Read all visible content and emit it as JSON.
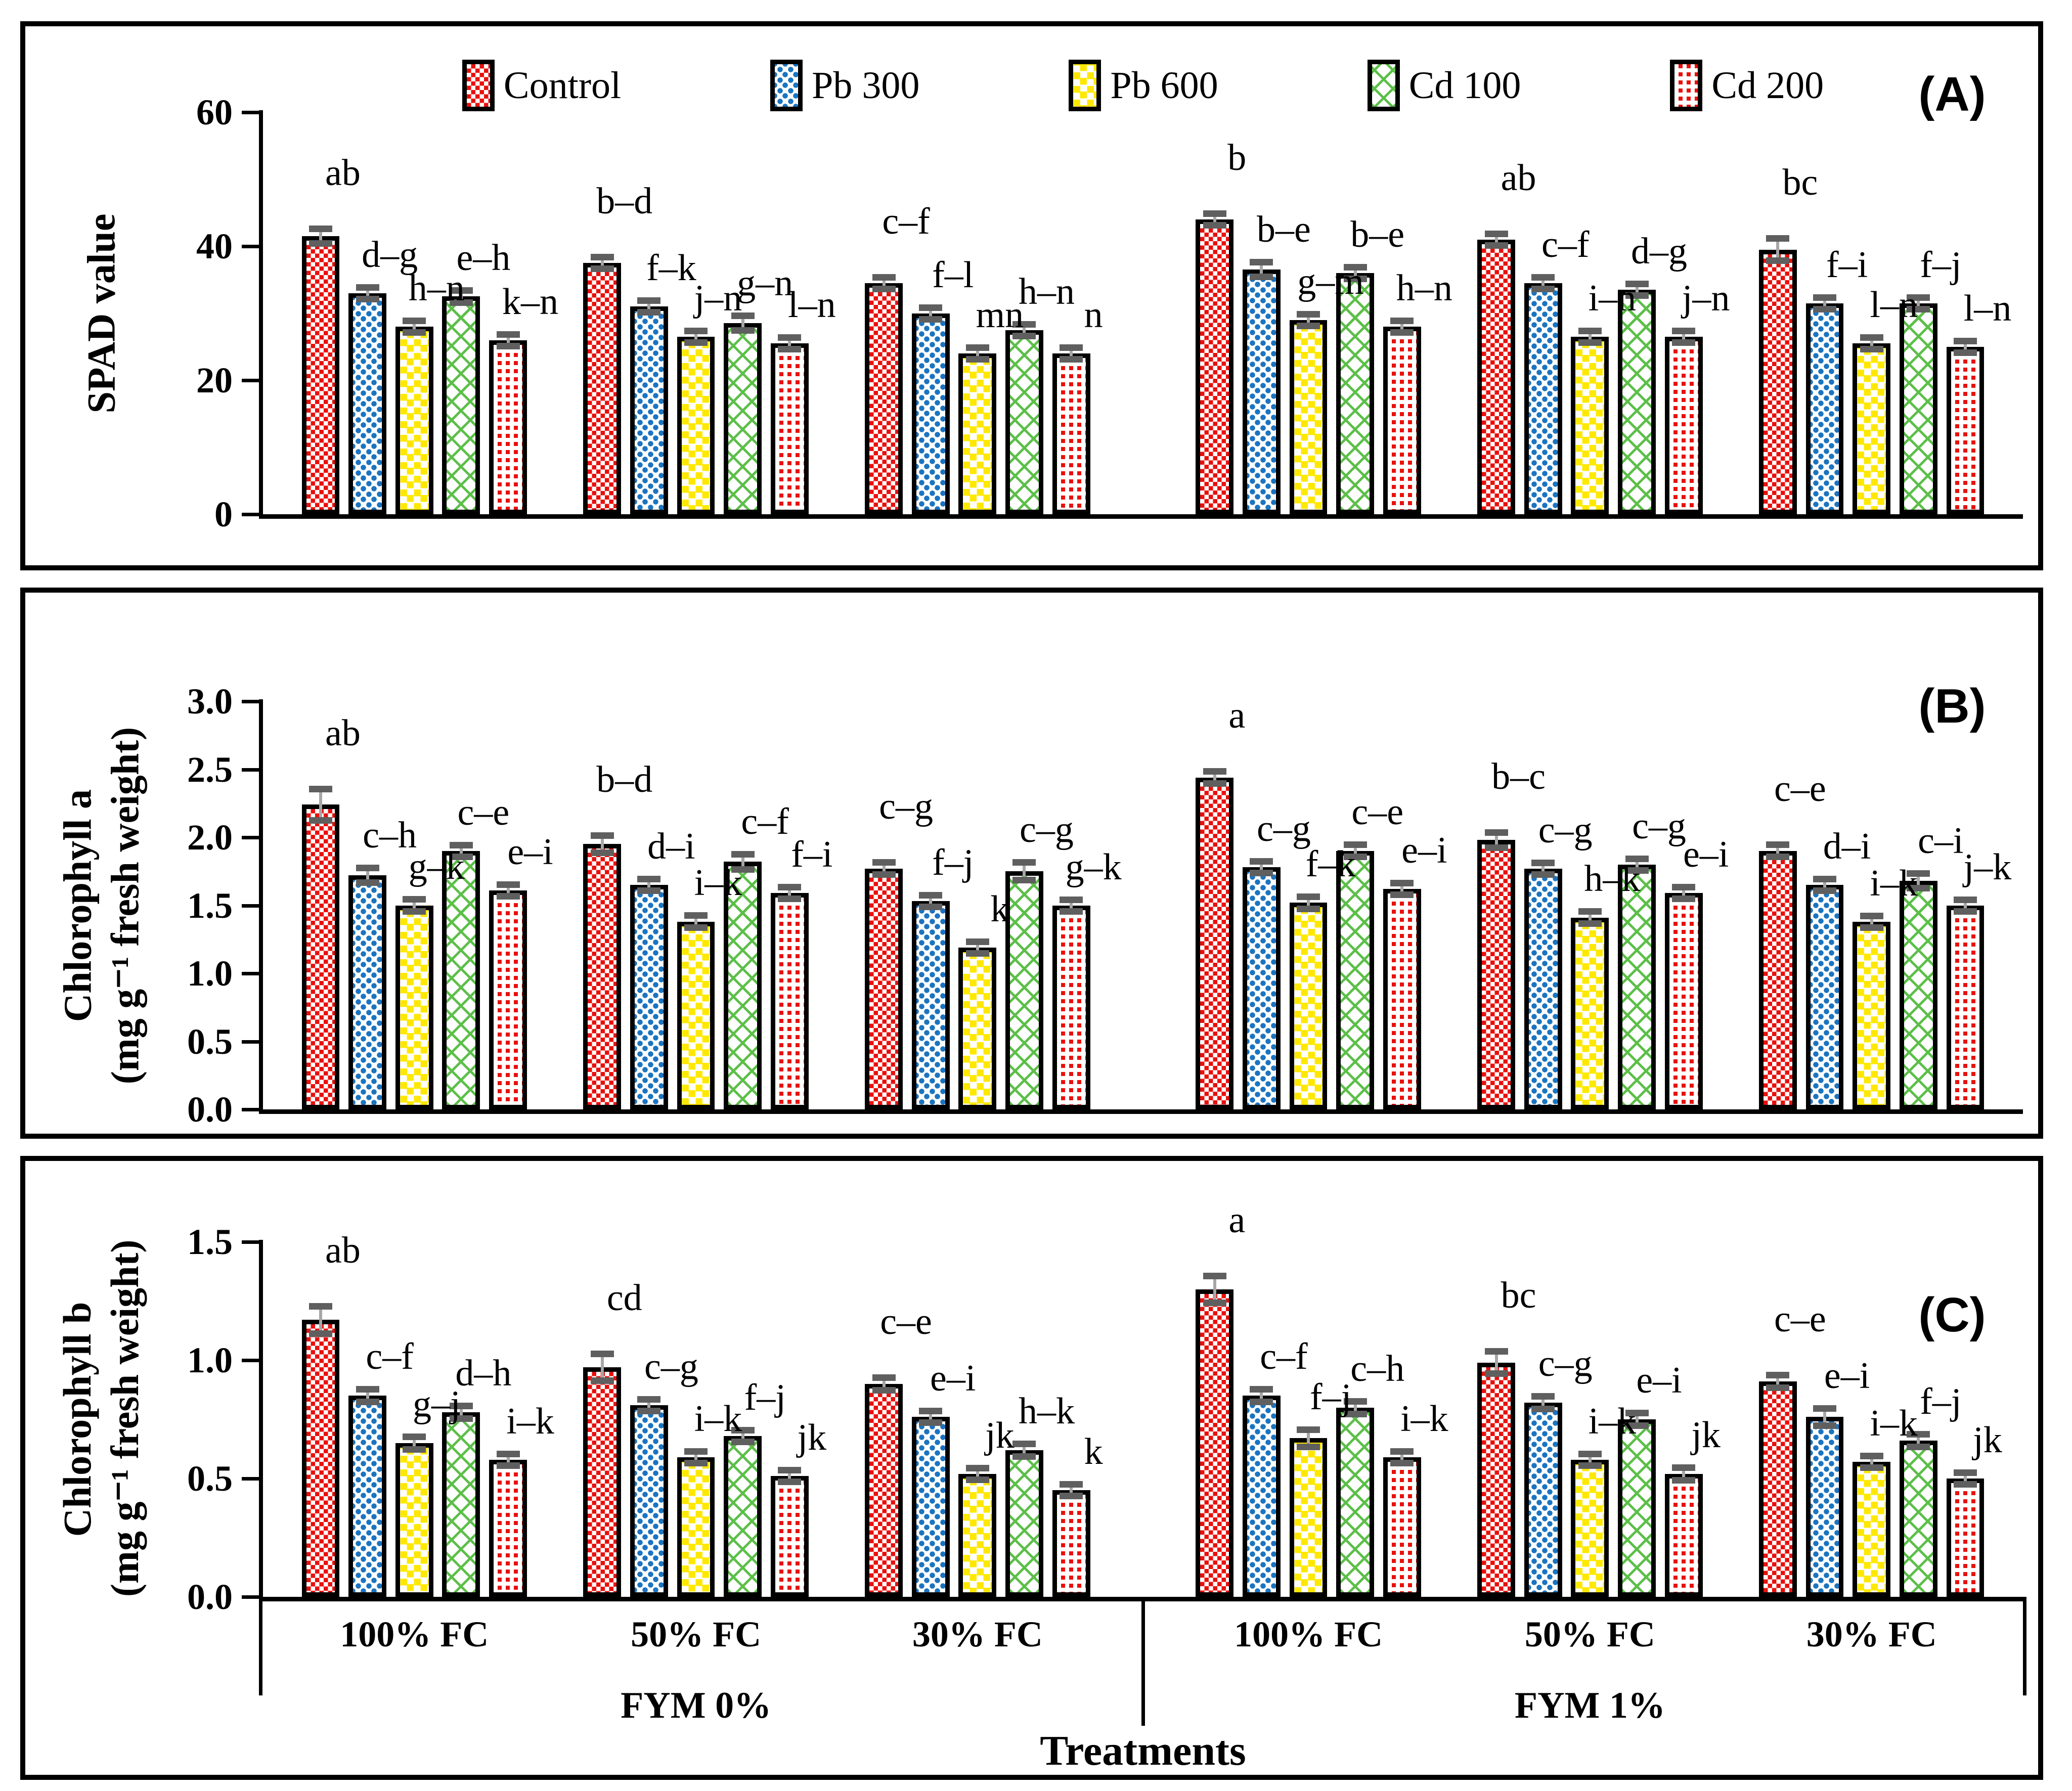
{
  "figure": {
    "panel_labels": [
      "(A)",
      "(B)",
      "(C)"
    ],
    "x_axis": {
      "fc_labels": [
        "100% FC",
        "50% FC",
        "30% FC",
        "100% FC",
        "50% FC",
        "30% FC"
      ],
      "fym_labels": [
        "FYM 0%",
        "FYM 1%"
      ],
      "title": "Treatments"
    },
    "legend": [
      {
        "label": "Control",
        "color": "#e8100c",
        "pattern": "checker-red"
      },
      {
        "label": "Pb 300",
        "color": "#1b74c0",
        "pattern": "dots-blue"
      },
      {
        "label": "Pb 600",
        "color": "#ffe800",
        "pattern": "squares-yellow"
      },
      {
        "label": "Cd 100",
        "color": "#5cbf49",
        "pattern": "lattice-green"
      },
      {
        "label": "Cd 200",
        "color": "#e8100c",
        "pattern": "grid-red"
      }
    ]
  },
  "chart_data": [
    {
      "type": "bar",
      "panel": "A",
      "ylabel_lines": [
        "SPAD value"
      ],
      "ylim": [
        0,
        60
      ],
      "yticks": [
        0,
        20,
        40,
        60
      ],
      "ytick_labels": [
        "0",
        "20",
        "40",
        "60"
      ],
      "categories": [
        "100% FC FYM 0%",
        "50% FC FYM 0%",
        "30% FC FYM 0%",
        "100% FC FYM 1%",
        "50% FC FYM 1%",
        "30% FC FYM 1%"
      ],
      "series": [
        {
          "name": "Control",
          "values": [
            41.5,
            37.5,
            34.5,
            44.0,
            41.0,
            39.5
          ],
          "errors": [
            1.2,
            1.0,
            1.0,
            0.8,
            1.0,
            1.8
          ],
          "letters": [
            "ab",
            "b–d",
            "c–f",
            "b",
            "ab",
            "bc"
          ]
        },
        {
          "name": "Pb 300",
          "values": [
            33.0,
            31.0,
            30.0,
            36.5,
            34.5,
            31.5
          ],
          "errors": [
            0.8,
            0.8,
            0.8,
            1.2,
            1.0,
            0.5
          ],
          "letters": [
            "d–g",
            "f–k",
            "f–l",
            "b–e",
            "c–f",
            "f–i"
          ]
        },
        {
          "name": "Pb 600",
          "values": [
            28.0,
            26.5,
            24.0,
            29.0,
            26.5,
            25.5
          ],
          "errors": [
            0.7,
            0.7,
            0.8,
            0.8,
            0.8,
            0.4
          ],
          "letters": [
            "h–n",
            "j–n",
            "mn",
            "g–m",
            "i–n",
            "l–n"
          ]
        },
        {
          "name": "Cd 100",
          "values": [
            32.5,
            28.5,
            27.5,
            36.0,
            33.5,
            31.5
          ],
          "errors": [
            1.0,
            1.2,
            0.9,
            1.0,
            1.0,
            0.5
          ],
          "letters": [
            "e–h",
            "g–n",
            "h–n",
            "b–e",
            "d–g",
            "f–j"
          ]
        },
        {
          "name": "Cd 200",
          "values": [
            26.0,
            25.5,
            24.0,
            28.0,
            26.5,
            25.0
          ],
          "errors": [
            0.6,
            0.6,
            0.7,
            0.8,
            0.8,
            0.3
          ],
          "letters": [
            "k–n",
            "l–n",
            "n",
            "h–n",
            "j–n",
            "l–n"
          ]
        }
      ]
    },
    {
      "type": "bar",
      "panel": "B",
      "ylabel_lines": [
        "Chlorophyll a",
        "(mg g⁻¹ fresh weight)"
      ],
      "ylim": [
        0,
        3.0
      ],
      "yticks": [
        0,
        0.5,
        1.0,
        1.5,
        2.0,
        2.5,
        3.0
      ],
      "ytick_labels": [
        "0.0",
        "0.5",
        "1.0",
        "1.5",
        "2.0",
        "2.5",
        "3.0"
      ],
      "categories": [
        "100% FC FYM 0%",
        "50% FC FYM 0%",
        "30% FC FYM 0%",
        "100% FC FYM 1%",
        "50% FC FYM 1%",
        "30% FC FYM 1%"
      ],
      "series": [
        {
          "name": "Control",
          "values": [
            2.24,
            1.95,
            1.77,
            2.44,
            1.98,
            1.9
          ],
          "errors": [
            0.12,
            0.07,
            0.05,
            0.05,
            0.06,
            0.05
          ],
          "letters": [
            "ab",
            "b–d",
            "c–g",
            "a",
            "b–c",
            "c–e"
          ]
        },
        {
          "name": "Pb 300",
          "values": [
            1.72,
            1.65,
            1.53,
            1.78,
            1.77,
            1.65
          ],
          "errors": [
            0.06,
            0.04,
            0.03,
            0.04,
            0.03,
            0.04
          ],
          "letters": [
            "c–h",
            "d–i",
            "f–j",
            "c–g",
            "c–g",
            "d–i"
          ]
        },
        {
          "name": "Pb 600",
          "values": [
            1.5,
            1.38,
            1.19,
            1.52,
            1.41,
            1.38
          ],
          "errors": [
            0.05,
            0.05,
            0.03,
            0.05,
            0.05,
            0.04
          ],
          "letters": [
            "g–k",
            "i–k",
            "k",
            "f–k",
            "h–k",
            "i–k"
          ]
        },
        {
          "name": "Cd 100",
          "values": [
            1.9,
            1.82,
            1.75,
            1.9,
            1.8,
            1.68
          ],
          "errors": [
            0.04,
            0.06,
            0.07,
            0.05,
            0.04,
            0.06
          ],
          "letters": [
            "c–e",
            "c–f",
            "c–g",
            "c–e",
            "c–g",
            "c–i"
          ]
        },
        {
          "name": "Cd 200",
          "values": [
            1.61,
            1.59,
            1.5,
            1.62,
            1.59,
            1.5
          ],
          "errors": [
            0.03,
            0.04,
            0.02,
            0.02,
            0.03,
            0.03
          ],
          "letters": [
            "e–i",
            "f–i",
            "g–k",
            "e–i",
            "e–i",
            "j–k"
          ]
        }
      ]
    },
    {
      "type": "bar",
      "panel": "C",
      "ylabel_lines": [
        "Chlorophyll b",
        "(mg g⁻¹ fresh weight)"
      ],
      "ylim": [
        0,
        1.5
      ],
      "yticks": [
        0,
        0.5,
        1.0,
        1.5
      ],
      "ytick_labels": [
        "0.0",
        "0.5",
        "1.0",
        "1.5"
      ],
      "categories": [
        "100% FC FYM 0%",
        "50% FC FYM 0%",
        "30% FC FYM 0%",
        "100% FC FYM 1%",
        "50% FC FYM 1%",
        "30% FC FYM 1%"
      ],
      "series": [
        {
          "name": "Control",
          "values": [
            1.17,
            0.97,
            0.9,
            1.3,
            0.99,
            0.91
          ],
          "errors": [
            0.06,
            0.06,
            0.03,
            0.06,
            0.05,
            0.03
          ],
          "letters": [
            "ab",
            "cd",
            "c–e",
            "a",
            "bc",
            "c–e"
          ]
        },
        {
          "name": "Pb 300",
          "values": [
            0.85,
            0.81,
            0.76,
            0.85,
            0.82,
            0.76
          ],
          "errors": [
            0.03,
            0.02,
            0.02,
            0.03,
            0.03,
            0.04
          ],
          "letters": [
            "c–f",
            "c–g",
            "e–i",
            "c–f",
            "c–g",
            "e–i"
          ]
        },
        {
          "name": "Pb 600",
          "values": [
            0.65,
            0.59,
            0.52,
            0.67,
            0.58,
            0.57
          ],
          "errors": [
            0.03,
            0.02,
            0.02,
            0.04,
            0.02,
            0.02
          ],
          "letters": [
            "g–j",
            "i–k",
            "jk",
            "f–j",
            "i–k",
            "i–k"
          ]
        },
        {
          "name": "Cd 100",
          "values": [
            0.78,
            0.68,
            0.62,
            0.8,
            0.75,
            0.66
          ],
          "errors": [
            0.03,
            0.02,
            0.03,
            0.03,
            0.03,
            0.03
          ],
          "letters": [
            "d–h",
            "f–j",
            "h–k",
            "c–h",
            "e–i",
            "f–j"
          ]
        },
        {
          "name": "Cd 200",
          "values": [
            0.58,
            0.51,
            0.45,
            0.59,
            0.52,
            0.5
          ],
          "errors": [
            0.02,
            0.01,
            0.02,
            0.02,
            0.03,
            0.02
          ],
          "letters": [
            "i–k",
            "jk",
            "k",
            "i–k",
            "jk",
            "jk"
          ]
        }
      ]
    }
  ]
}
